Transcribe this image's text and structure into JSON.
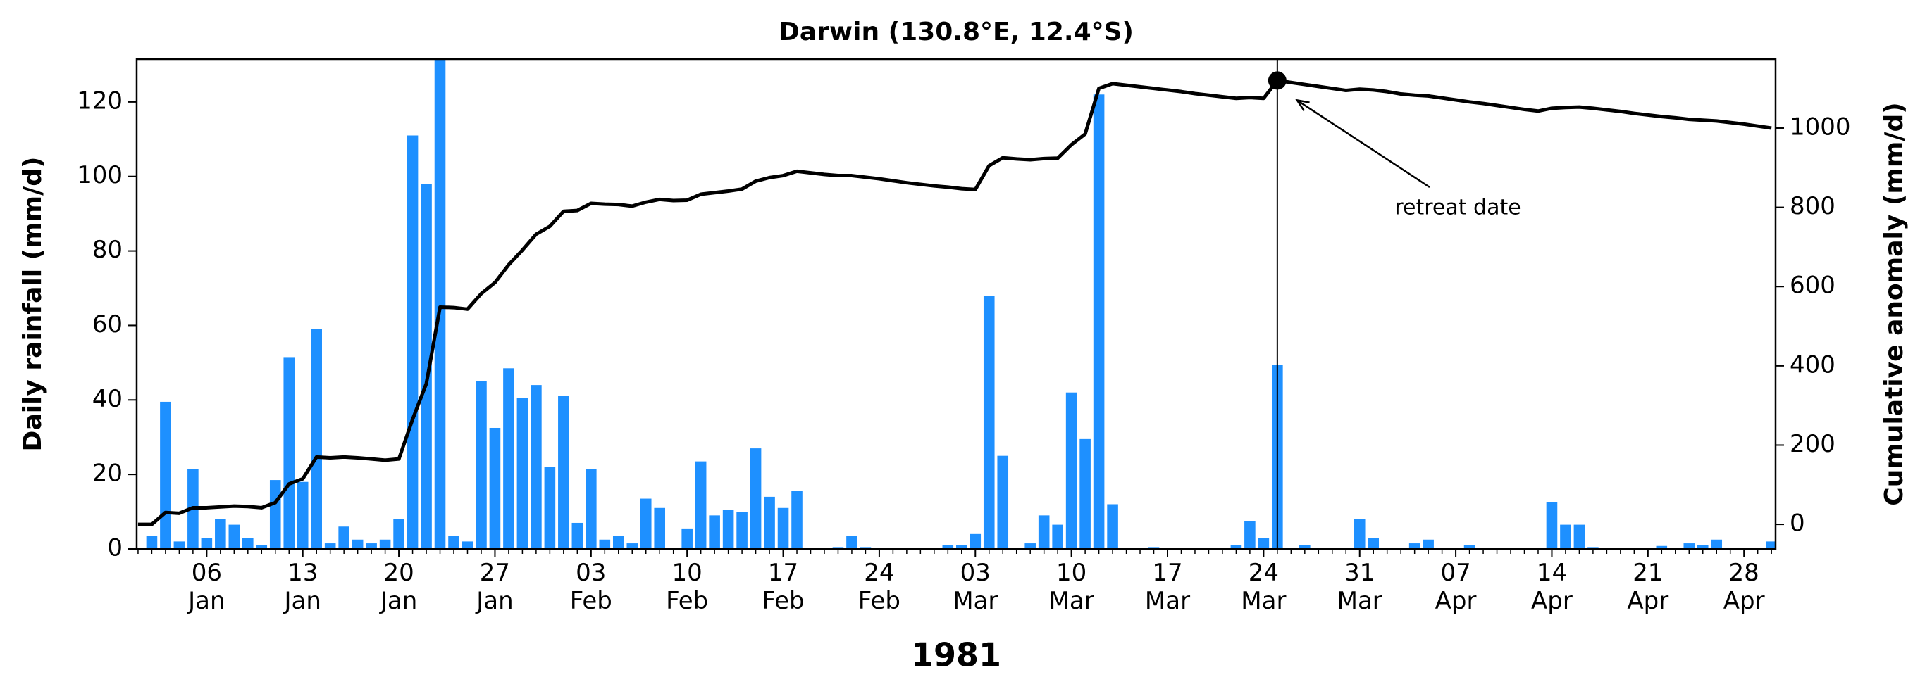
{
  "chart_data": {
    "type": "bar",
    "title": "Darwin (130.8°E, 12.4°S)",
    "xlabel": "1981",
    "ylabel": "Daily rainfall (mm/d)",
    "y2label": "Cumulative anomaly (mm/d)",
    "x": [
      "1981-01-01",
      "1981-01-02",
      "1981-01-03",
      "1981-01-04",
      "1981-01-05",
      "1981-01-06",
      "1981-01-07",
      "1981-01-08",
      "1981-01-09",
      "1981-01-10",
      "1981-01-11",
      "1981-01-12",
      "1981-01-13",
      "1981-01-14",
      "1981-01-15",
      "1981-01-16",
      "1981-01-17",
      "1981-01-18",
      "1981-01-19",
      "1981-01-20",
      "1981-01-21",
      "1981-01-22",
      "1981-01-23",
      "1981-01-24",
      "1981-01-25",
      "1981-01-26",
      "1981-01-27",
      "1981-01-28",
      "1981-01-29",
      "1981-01-30",
      "1981-01-31",
      "1981-02-01",
      "1981-02-02",
      "1981-02-03",
      "1981-02-04",
      "1981-02-05",
      "1981-02-06",
      "1981-02-07",
      "1981-02-08",
      "1981-02-09",
      "1981-02-10",
      "1981-02-11",
      "1981-02-12",
      "1981-02-13",
      "1981-02-14",
      "1981-02-15",
      "1981-02-16",
      "1981-02-17",
      "1981-02-18",
      "1981-02-19",
      "1981-02-20",
      "1981-02-21",
      "1981-02-22",
      "1981-02-23",
      "1981-02-24",
      "1981-02-25",
      "1981-02-26",
      "1981-02-27",
      "1981-02-28",
      "1981-03-01",
      "1981-03-02",
      "1981-03-03",
      "1981-03-04",
      "1981-03-05",
      "1981-03-06",
      "1981-03-07",
      "1981-03-08",
      "1981-03-09",
      "1981-03-10",
      "1981-03-11",
      "1981-03-12",
      "1981-03-13",
      "1981-03-14",
      "1981-03-15",
      "1981-03-16",
      "1981-03-17",
      "1981-03-18",
      "1981-03-19",
      "1981-03-20",
      "1981-03-21",
      "1981-03-22",
      "1981-03-23",
      "1981-03-24",
      "1981-03-25",
      "1981-03-26",
      "1981-03-27",
      "1981-03-28",
      "1981-03-29",
      "1981-03-30",
      "1981-03-31",
      "1981-04-01",
      "1981-04-02",
      "1981-04-03",
      "1981-04-04",
      "1981-04-05",
      "1981-04-06",
      "1981-04-07",
      "1981-04-08",
      "1981-04-09",
      "1981-04-10",
      "1981-04-11",
      "1981-04-12",
      "1981-04-13",
      "1981-04-14",
      "1981-04-15",
      "1981-04-16",
      "1981-04-17",
      "1981-04-18",
      "1981-04-19",
      "1981-04-20",
      "1981-04-21",
      "1981-04-22",
      "1981-04-23",
      "1981-04-24",
      "1981-04-25",
      "1981-04-26",
      "1981-04-27",
      "1981-04-28",
      "1981-04-29",
      "1981-04-30"
    ],
    "series": [
      {
        "color": "#1e90ff",
        "values": [
          0,
          3.5,
          39.5,
          2,
          21.5,
          3,
          8,
          6.5,
          3,
          1,
          18.5,
          51.5,
          18,
          59,
          1.5,
          6,
          2.5,
          1.5,
          2.5,
          8,
          111,
          98,
          135,
          3.5,
          2,
          45,
          32.5,
          48.5,
          40.5,
          44,
          22,
          41,
          7,
          21.5,
          2.5,
          3.5,
          1.5,
          13.5,
          11,
          0,
          5.5,
          23.5,
          9,
          10.5,
          10,
          27,
          14,
          11,
          15.5,
          0,
          0,
          0.5,
          3.5,
          0.5,
          0,
          0,
          0,
          0.3,
          0.3,
          1,
          1,
          4,
          68,
          25,
          0,
          1.5,
          9,
          6.5,
          42,
          29.5,
          122,
          12,
          0,
          0,
          0.5,
          0,
          0,
          0,
          0,
          0,
          1,
          7.5,
          3,
          49.5,
          0,
          1,
          0,
          0,
          0,
          8,
          3,
          0,
          0,
          1.5,
          2.5,
          0,
          0,
          1,
          0,
          0,
          0,
          0,
          0,
          12.5,
          6.5,
          6.5,
          0.5,
          0,
          0,
          0,
          0,
          0.8,
          0,
          1.5,
          1,
          2.5,
          0,
          0,
          0,
          2
        ]
      },
      {
        "type": "line",
        "axis": "y2",
        "color": "#000000",
        "values": [
          0,
          0,
          30,
          28,
          42,
          42,
          44,
          46,
          45,
          42,
          55,
          102,
          115,
          170,
          168,
          170,
          168,
          165,
          162,
          165,
          265,
          355,
          548,
          547,
          543,
          582,
          610,
          655,
          692,
          732,
          752,
          790,
          792,
          810,
          808,
          807,
          803,
          813,
          820,
          817,
          818,
          833,
          837,
          841,
          846,
          866,
          875,
          880,
          891,
          887,
          883,
          880,
          880,
          876,
          872,
          867,
          862,
          858,
          854,
          851,
          847,
          845,
          905,
          925,
          922,
          920,
          923,
          924,
          958,
          985,
          1100,
          1112,
          1108,
          1104,
          1100,
          1096,
          1092,
          1087,
          1083,
          1079,
          1075,
          1077,
          1075,
          1120,
          1115,
          1110,
          1105,
          1100,
          1095,
          1098,
          1096,
          1092,
          1086,
          1083,
          1081,
          1076,
          1071,
          1066,
          1062,
          1057,
          1052,
          1047,
          1043,
          1050,
          1052,
          1053,
          1050,
          1046,
          1042,
          1037,
          1033,
          1029,
          1026,
          1022,
          1020,
          1018,
          1014,
          1010,
          1005,
          1000
        ]
      }
    ],
    "annotation": {
      "text": "retreat date",
      "x": "1981-03-25"
    },
    "xlim": [
      "1981-01-01",
      "1981-04-30"
    ],
    "xticks": [
      {
        "value": "1981-01-06",
        "label": "06\nJan"
      },
      {
        "value": "1981-01-13",
        "label": "13\nJan"
      },
      {
        "value": "1981-01-20",
        "label": "20\nJan"
      },
      {
        "value": "1981-01-27",
        "label": "27\nJan"
      },
      {
        "value": "1981-02-03",
        "label": "03\nFeb"
      },
      {
        "value": "1981-02-10",
        "label": "10\nFeb"
      },
      {
        "value": "1981-02-17",
        "label": "17\nFeb"
      },
      {
        "value": "1981-02-24",
        "label": "24\nFeb"
      },
      {
        "value": "1981-03-03",
        "label": "03\nMar"
      },
      {
        "value": "1981-03-10",
        "label": "10\nMar"
      },
      {
        "value": "1981-03-17",
        "label": "17\nMar"
      },
      {
        "value": "1981-03-24",
        "label": "24\nMar"
      },
      {
        "value": "1981-03-31",
        "label": "31\nMar"
      },
      {
        "value": "1981-04-07",
        "label": "07\nApr"
      },
      {
        "value": "1981-04-14",
        "label": "14\nApr"
      },
      {
        "value": "1981-04-21",
        "label": "21\nApr"
      },
      {
        "value": "1981-04-28",
        "label": "28\nApr"
      }
    ],
    "ylim": [
      0,
      131.5
    ],
    "yticks": [
      0,
      20,
      40,
      60,
      80,
      100,
      120
    ],
    "y2lim": [
      -62,
      1174
    ],
    "y2ticks": [
      0,
      200,
      400,
      600,
      800,
      1000
    ],
    "grid": false
  }
}
